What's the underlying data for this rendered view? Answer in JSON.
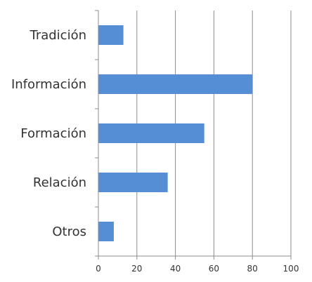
{
  "chart_data": {
    "type": "bar",
    "orientation": "horizontal",
    "title": "",
    "xlabel": "",
    "ylabel": "",
    "categories": [
      "Tradición",
      "Información",
      "Formación",
      "Relación",
      "Otros"
    ],
    "values": [
      13,
      80,
      55,
      36,
      8
    ],
    "xlim": [
      0,
      100
    ],
    "x_ticks": [
      0,
      20,
      40,
      60,
      80,
      100
    ],
    "grid": "vertical",
    "legend": "none",
    "bar_color": "#558ed5",
    "grid_color": "#8c8c8c",
    "axis_color": "#8c8c8c"
  }
}
